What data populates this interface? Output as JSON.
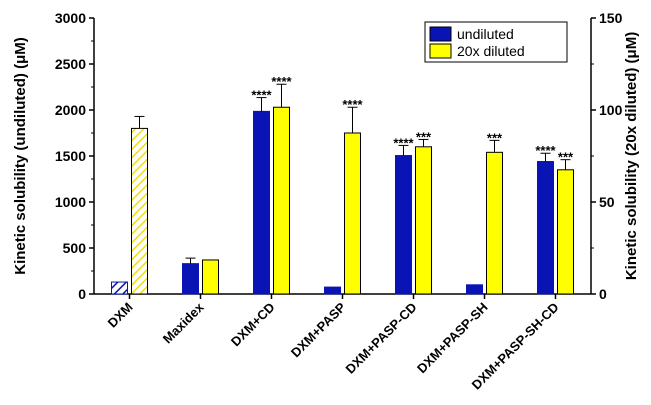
{
  "chart_data": {
    "type": "bar",
    "categories": [
      "DXM",
      "Maxidex",
      "DXM+CD",
      "DXM+PASP",
      "DXM+PASP-CD",
      "DXM+PASP-SH",
      "DXM+PASP-SH-CD"
    ],
    "ylabel": "Kinetic solubility (undiluted) (μM)",
    "ylabel_right": "Kinetic solubility (20x diluted) (μM)",
    "ylim": [
      0,
      3000
    ],
    "ylim_right": [
      0,
      150
    ],
    "yticks": [
      "0",
      "500",
      "1000",
      "1500",
      "2000",
      "2500",
      "3000"
    ],
    "yticks_right": [
      "0",
      "50",
      "100",
      "150"
    ],
    "legend_position": "top-right",
    "series": [
      {
        "name": "undiluted",
        "color": "#0a14b4",
        "axis": "left",
        "values": [
          130,
          330,
          1985,
          75,
          1505,
          100,
          1440
        ],
        "errors": [
          0,
          60,
          150,
          0,
          110,
          0,
          90
        ],
        "hatched": [
          true,
          false,
          false,
          false,
          false,
          false,
          false
        ],
        "significance": [
          "",
          "",
          "****",
          "",
          "****",
          "",
          "****"
        ]
      },
      {
        "name": "20x diluted",
        "color": "#ffff00",
        "axis": "right",
        "values": [
          90,
          18.5,
          101.5,
          87.5,
          80,
          77,
          67.5
        ],
        "errors": [
          6.5,
          0,
          12.5,
          14,
          4,
          6.5,
          5.5
        ],
        "hatched": [
          true,
          false,
          false,
          false,
          false,
          false,
          false
        ],
        "significance": [
          "",
          "",
          "****",
          "****",
          "***",
          "***",
          "***"
        ]
      }
    ]
  }
}
